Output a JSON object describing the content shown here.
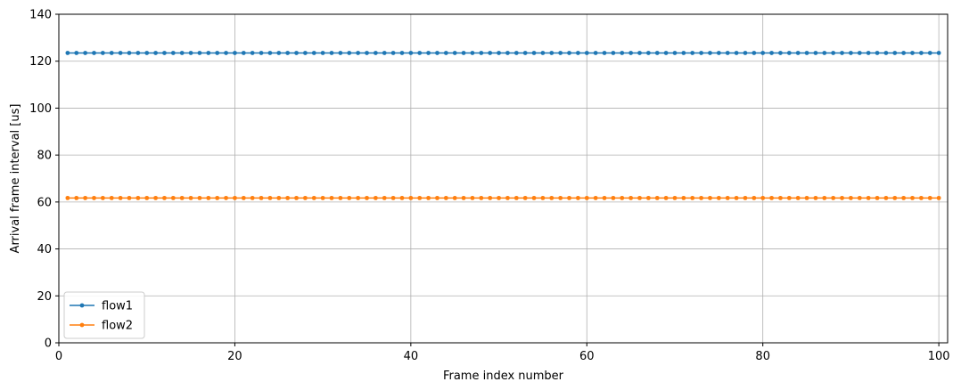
{
  "chart_data": {
    "type": "line",
    "title": "",
    "xlabel": "Frame index number",
    "ylabel": "Arrival frame interval [us]",
    "xlim": [
      0,
      101
    ],
    "ylim": [
      0,
      140
    ],
    "xticks": [
      0,
      20,
      40,
      60,
      80,
      100
    ],
    "yticks": [
      0,
      20,
      40,
      60,
      80,
      100,
      120,
      140
    ],
    "grid": true,
    "legend_position": "lower-left",
    "x": {
      "start": 1,
      "end": 100,
      "step": 1
    },
    "series": [
      {
        "name": "flow1",
        "color": "#1f77b4",
        "marker": "circle",
        "constant_value": 123.5
      },
      {
        "name": "flow2",
        "color": "#ff7f0e",
        "marker": "circle",
        "constant_value": 61.7
      }
    ]
  }
}
